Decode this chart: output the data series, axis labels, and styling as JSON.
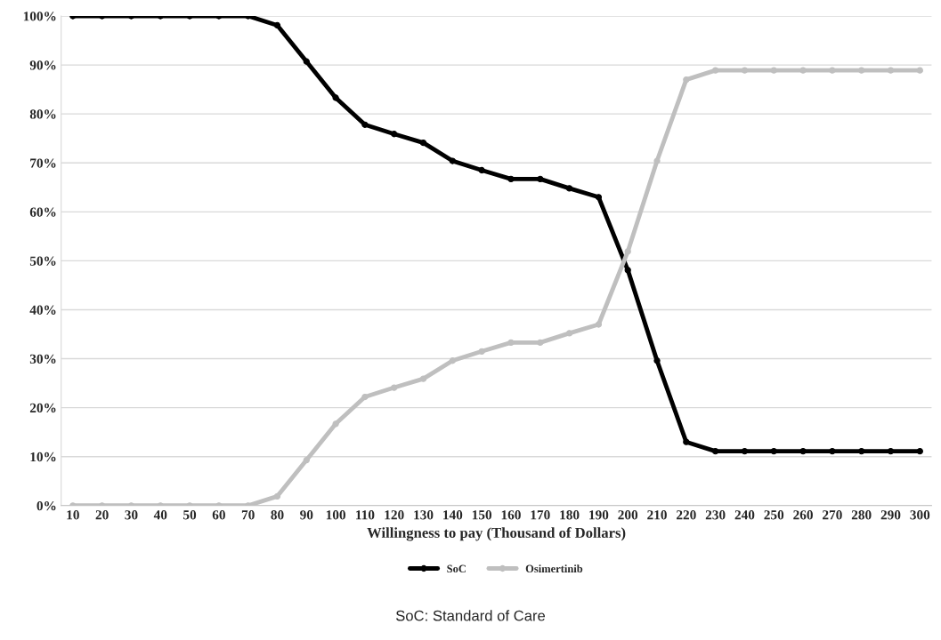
{
  "chart_data": {
    "type": "line",
    "xlabel": "Willingness to pay (Thousand of Dollars)",
    "categories": [
      "10",
      "20",
      "30",
      "40",
      "50",
      "60",
      "70",
      "80",
      "90",
      "100",
      "110",
      "120",
      "130",
      "140",
      "150",
      "160",
      "170",
      "180",
      "190",
      "200",
      "210",
      "220",
      "230",
      "240",
      "250",
      "260",
      "270",
      "280",
      "290",
      "300"
    ],
    "series": [
      {
        "name": "SoC",
        "color": "#000000",
        "values": [
          100,
          100,
          100,
          100,
          100,
          100,
          100,
          98.1,
          90.7,
          83.3,
          77.8,
          75.9,
          74.1,
          70.4,
          68.5,
          66.7,
          66.7,
          64.8,
          63.0,
          48.1,
          29.6,
          13.0,
          11.1,
          11.1,
          11.1,
          11.1,
          11.1,
          11.1,
          11.1,
          11.1
        ]
      },
      {
        "name": "Osimertinib",
        "color": "#bfbfbf",
        "values": [
          0,
          0,
          0,
          0,
          0,
          0,
          0,
          1.9,
          9.3,
          16.7,
          22.2,
          24.1,
          25.9,
          29.6,
          31.5,
          33.3,
          33.3,
          35.2,
          37.0,
          51.9,
          70.4,
          87.0,
          88.9,
          88.9,
          88.9,
          88.9,
          88.9,
          88.9,
          88.9,
          88.9
        ]
      }
    ],
    "ylim": [
      0,
      100
    ],
    "yticks": [
      {
        "value": 0,
        "label": "0%"
      },
      {
        "value": 10,
        "label": "10%"
      },
      {
        "value": 20,
        "label": "20%"
      },
      {
        "value": 30,
        "label": "30%"
      },
      {
        "value": 40,
        "label": "40%"
      },
      {
        "value": 50,
        "label": "50%"
      },
      {
        "value": 60,
        "label": "60%"
      },
      {
        "value": 70,
        "label": "70%"
      },
      {
        "value": 80,
        "label": "80%"
      },
      {
        "value": 90,
        "label": "90%"
      },
      {
        "value": 100,
        "label": "100%"
      }
    ],
    "grid": "y",
    "legend": "bottom",
    "marker": "circle",
    "line_style": "solid",
    "annotations": [
      "SoC: Standard of Care"
    ]
  }
}
